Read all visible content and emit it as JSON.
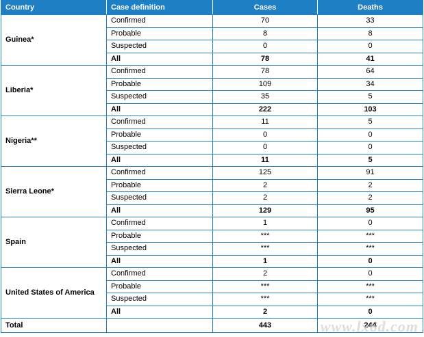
{
  "headers": {
    "country": "Country",
    "definition": "Case definition",
    "cases": "Cases",
    "deaths": "Deaths"
  },
  "colors": {
    "header_bg": "#1f7fc4",
    "border": "#1f7fc4"
  },
  "countries": [
    {
      "name": "Guinea*",
      "rows": [
        {
          "def": "Confirmed",
          "cases": "70",
          "deaths": "33"
        },
        {
          "def": "Probable",
          "cases": "8",
          "deaths": "8"
        },
        {
          "def": "Suspected",
          "cases": "0",
          "deaths": "0"
        },
        {
          "def": "All",
          "cases": "78",
          "deaths": "41"
        }
      ]
    },
    {
      "name": "Liberia*",
      "rows": [
        {
          "def": "Confirmed",
          "cases": "78",
          "deaths": "64"
        },
        {
          "def": "Probable",
          "cases": "109",
          "deaths": "34"
        },
        {
          "def": "Suspected",
          "cases": "35",
          "deaths": "5"
        },
        {
          "def": "All",
          "cases": "222",
          "deaths": "103"
        }
      ]
    },
    {
      "name": "Nigeria**",
      "rows": [
        {
          "def": "Confirmed",
          "cases": "11",
          "deaths": "5"
        },
        {
          "def": "Probable",
          "cases": "0",
          "deaths": "0"
        },
        {
          "def": "Suspected",
          "cases": "0",
          "deaths": "0"
        },
        {
          "def": "All",
          "cases": "11",
          "deaths": "5"
        }
      ]
    },
    {
      "name": "Sierra Leone*",
      "rows": [
        {
          "def": "Confirmed",
          "cases": "125",
          "deaths": "91"
        },
        {
          "def": "Probable",
          "cases": "2",
          "deaths": "2"
        },
        {
          "def": "Suspected",
          "cases": "2",
          "deaths": "2"
        },
        {
          "def": "All",
          "cases": "129",
          "deaths": "95"
        }
      ]
    },
    {
      "name": "Spain",
      "rows": [
        {
          "def": "Confirmed",
          "cases": "1",
          "deaths": "0"
        },
        {
          "def": "Probable",
          "cases": "***",
          "deaths": "***"
        },
        {
          "def": "Suspected",
          "cases": "***",
          "deaths": "***"
        },
        {
          "def": "All",
          "cases": "1",
          "deaths": "0"
        }
      ]
    },
    {
      "name": "United States of America",
      "rows": [
        {
          "def": "Confirmed",
          "cases": "2",
          "deaths": "0"
        },
        {
          "def": "Probable",
          "cases": "***",
          "deaths": "***"
        },
        {
          "def": "Suspected",
          "cases": "***",
          "deaths": "***"
        },
        {
          "def": "All",
          "cases": "2",
          "deaths": "0"
        }
      ]
    }
  ],
  "total": {
    "label": "Total",
    "definition": "",
    "cases": "443",
    "deaths": "244"
  },
  "watermark": "www.lx6d.com"
}
